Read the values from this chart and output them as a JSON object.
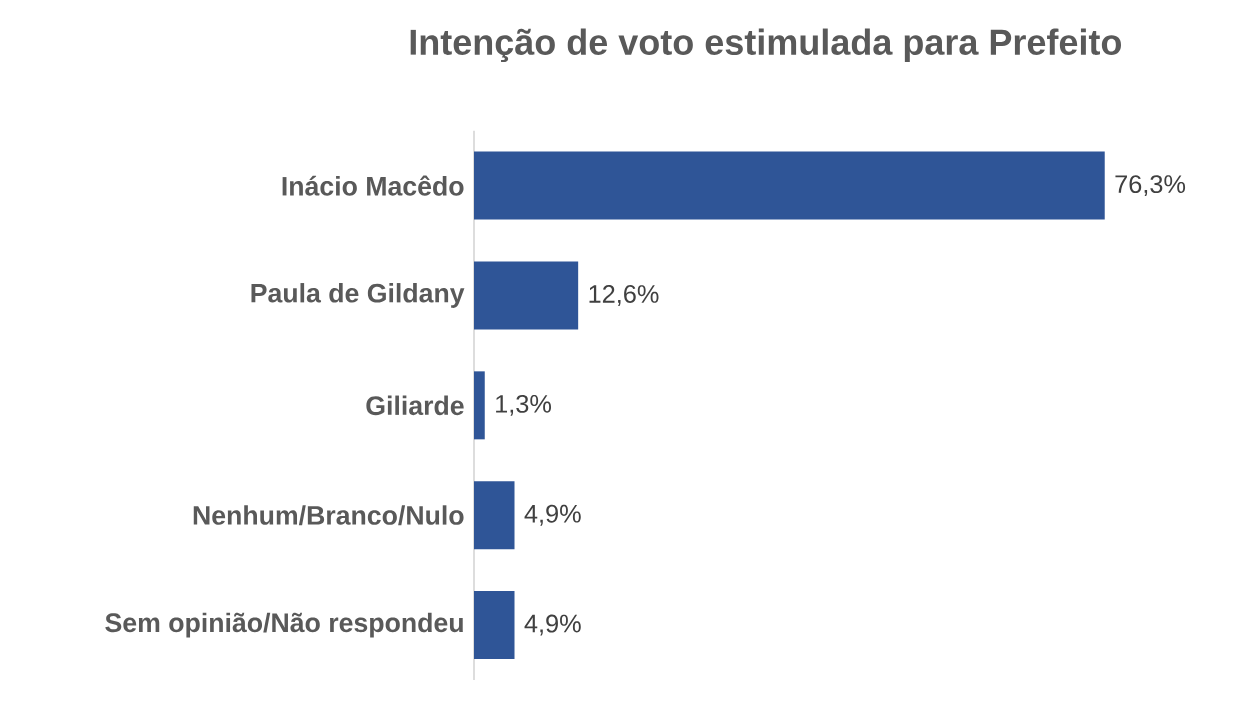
{
  "chart_data": {
    "type": "bar",
    "orientation": "horizontal",
    "title": "Intenção de voto estimulada para Prefeito",
    "categories": [
      "Inácio Macêdo",
      "Paula de Gildany",
      "Giliarde",
      "Nenhum/Branco/Nulo",
      "Sem opinião/Não respondeu"
    ],
    "values": [
      76.3,
      12.6,
      1.3,
      4.9,
      4.9
    ],
    "value_labels": [
      "76,3%",
      "12,6%",
      "1,3%",
      "4,9%",
      "4,9%"
    ],
    "color": "#2f5597"
  }
}
